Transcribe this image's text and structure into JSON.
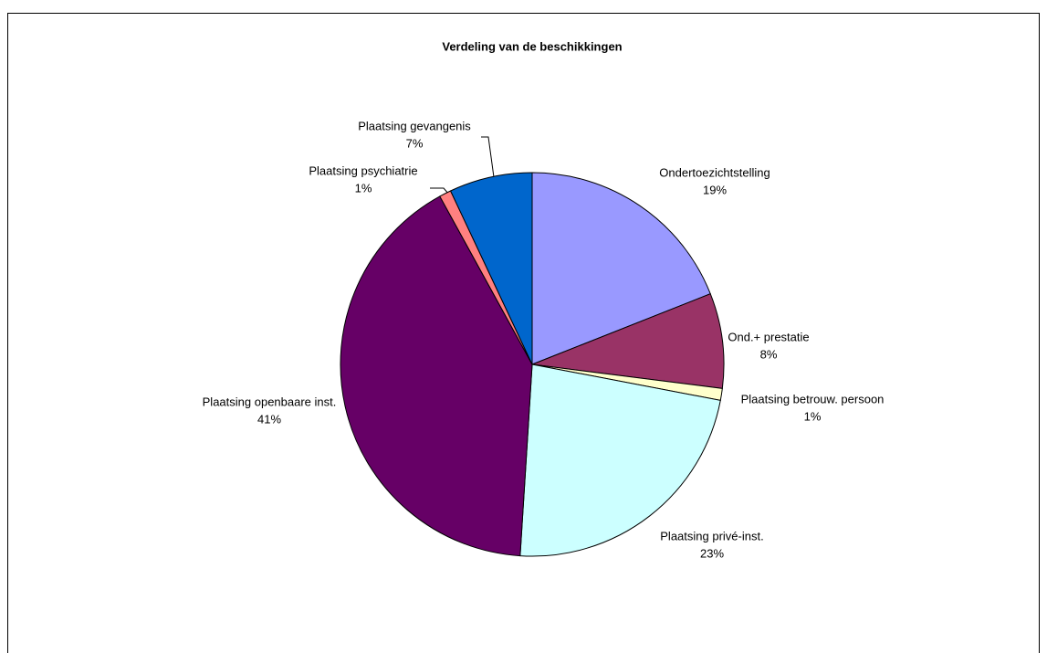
{
  "chart_data": {
    "type": "pie",
    "title": "Verdeling van de beschikkingen",
    "categories": [
      "Ondertoezichtstelling",
      "Ond.+ prestatie",
      "Plaatsing betrouw. persoon",
      "Plaatsing privé-inst.",
      "Plaatsing openbaare inst.",
      "Plaatsing psychiatrie",
      "Plaatsing gevangenis"
    ],
    "values": [
      19,
      8,
      1,
      23,
      41,
      1,
      7
    ],
    "value_labels": [
      "19%",
      "8%",
      "1%",
      "23%",
      "41%",
      "1%",
      "7%"
    ],
    "colors": [
      "#9999ff",
      "#993366",
      "#ffffcc",
      "#ccffff",
      "#660066",
      "#ff8080",
      "#0066cc"
    ]
  }
}
